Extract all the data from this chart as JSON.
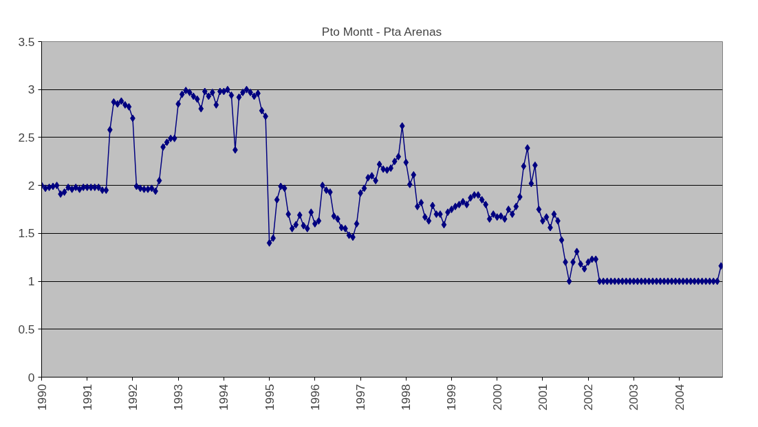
{
  "chart_data": {
    "type": "line",
    "title": "Pto Montt - Pta Arenas",
    "categories": [
      "1990",
      null,
      null,
      null,
      null,
      null,
      null,
      null,
      null,
      null,
      null,
      null,
      "1991",
      null,
      null,
      null,
      null,
      null,
      null,
      null,
      null,
      null,
      null,
      null,
      "1992",
      null,
      null,
      null,
      null,
      null,
      null,
      null,
      null,
      null,
      null,
      null,
      "1993",
      null,
      null,
      null,
      null,
      null,
      null,
      null,
      null,
      null,
      null,
      null,
      "1994",
      null,
      null,
      null,
      null,
      null,
      null,
      null,
      null,
      null,
      null,
      null,
      "1995",
      null,
      null,
      null,
      null,
      null,
      null,
      null,
      null,
      null,
      null,
      null,
      "1996",
      null,
      null,
      null,
      null,
      null,
      null,
      null,
      null,
      null,
      null,
      null,
      "1997",
      null,
      null,
      null,
      null,
      null,
      null,
      null,
      null,
      null,
      null,
      null,
      "1998",
      null,
      null,
      null,
      null,
      null,
      null,
      null,
      null,
      null,
      null,
      null,
      "1999",
      null,
      null,
      null,
      null,
      null,
      null,
      null,
      null,
      null,
      null,
      null,
      "2000",
      null,
      null,
      null,
      null,
      null,
      null,
      null,
      null,
      null,
      null,
      null,
      "2001",
      null,
      null,
      null,
      null,
      null,
      null,
      null,
      null,
      null,
      null,
      null,
      "2002",
      null,
      null,
      null,
      null,
      null,
      null,
      null,
      null,
      null,
      null,
      null,
      "2003",
      null,
      null,
      null,
      null,
      null,
      null,
      null,
      null,
      null,
      null,
      null,
      "2004",
      null,
      null,
      null,
      null,
      null,
      null,
      null,
      null,
      null,
      null,
      null
    ],
    "values": [
      2.0,
      1.97,
      1.98,
      1.99,
      2.0,
      1.91,
      1.93,
      1.98,
      1.96,
      1.98,
      1.96,
      1.98,
      1.98,
      1.98,
      1.98,
      1.98,
      1.95,
      1.95,
      2.58,
      2.87,
      2.85,
      2.88,
      2.84,
      2.82,
      2.7,
      1.99,
      1.97,
      1.96,
      1.96,
      1.97,
      1.94,
      2.05,
      2.4,
      2.45,
      2.49,
      2.49,
      2.85,
      2.95,
      2.99,
      2.97,
      2.93,
      2.9,
      2.8,
      2.98,
      2.93,
      2.97,
      2.84,
      2.98,
      2.98,
      3.0,
      2.94,
      2.37,
      2.92,
      2.97,
      3.0,
      2.97,
      2.93,
      2.96,
      2.78,
      2.72,
      1.4,
      1.45,
      1.85,
      1.99,
      1.97,
      1.7,
      1.55,
      1.59,
      1.69,
      1.58,
      1.55,
      1.72,
      1.6,
      1.63,
      2.0,
      1.95,
      1.93,
      1.68,
      1.65,
      1.56,
      1.55,
      1.48,
      1.46,
      1.6,
      1.92,
      1.97,
      2.08,
      2.1,
      2.05,
      2.22,
      2.17,
      2.16,
      2.18,
      2.25,
      2.3,
      2.62,
      2.24,
      2.01,
      2.11,
      1.78,
      1.82,
      1.67,
      1.63,
      1.79,
      1.7,
      1.7,
      1.59,
      1.72,
      1.75,
      1.78,
      1.8,
      1.83,
      1.8,
      1.87,
      1.9,
      1.9,
      1.85,
      1.8,
      1.65,
      1.7,
      1.67,
      1.68,
      1.65,
      1.75,
      1.7,
      1.78,
      1.88,
      2.2,
      2.39,
      2.02,
      2.21,
      1.75,
      1.63,
      1.67,
      1.56,
      1.7,
      1.63,
      1.43,
      1.2,
      1.0,
      1.2,
      1.31,
      1.18,
      1.13,
      1.2,
      1.23,
      1.23,
      1.0,
      1.0,
      1.0,
      1.0,
      1.0,
      1.0,
      1.0,
      1.0,
      1.0,
      1.0,
      1.0,
      1.0,
      1.0,
      1.0,
      1.0,
      1.0,
      1.0,
      1.0,
      1.0,
      1.0,
      1.0,
      1.0,
      1.0,
      1.0,
      1.0,
      1.0,
      1.0,
      1.0,
      1.0,
      1.0,
      1.0,
      1.0,
      1.16
    ],
    "color": "#000080",
    "marker": "diamond",
    "line_style": "solid",
    "ylim": [
      0,
      3.5
    ],
    "yticks": [
      0,
      0.5,
      1,
      1.5,
      2,
      2.5,
      3,
      3.5
    ],
    "grid": "y"
  }
}
